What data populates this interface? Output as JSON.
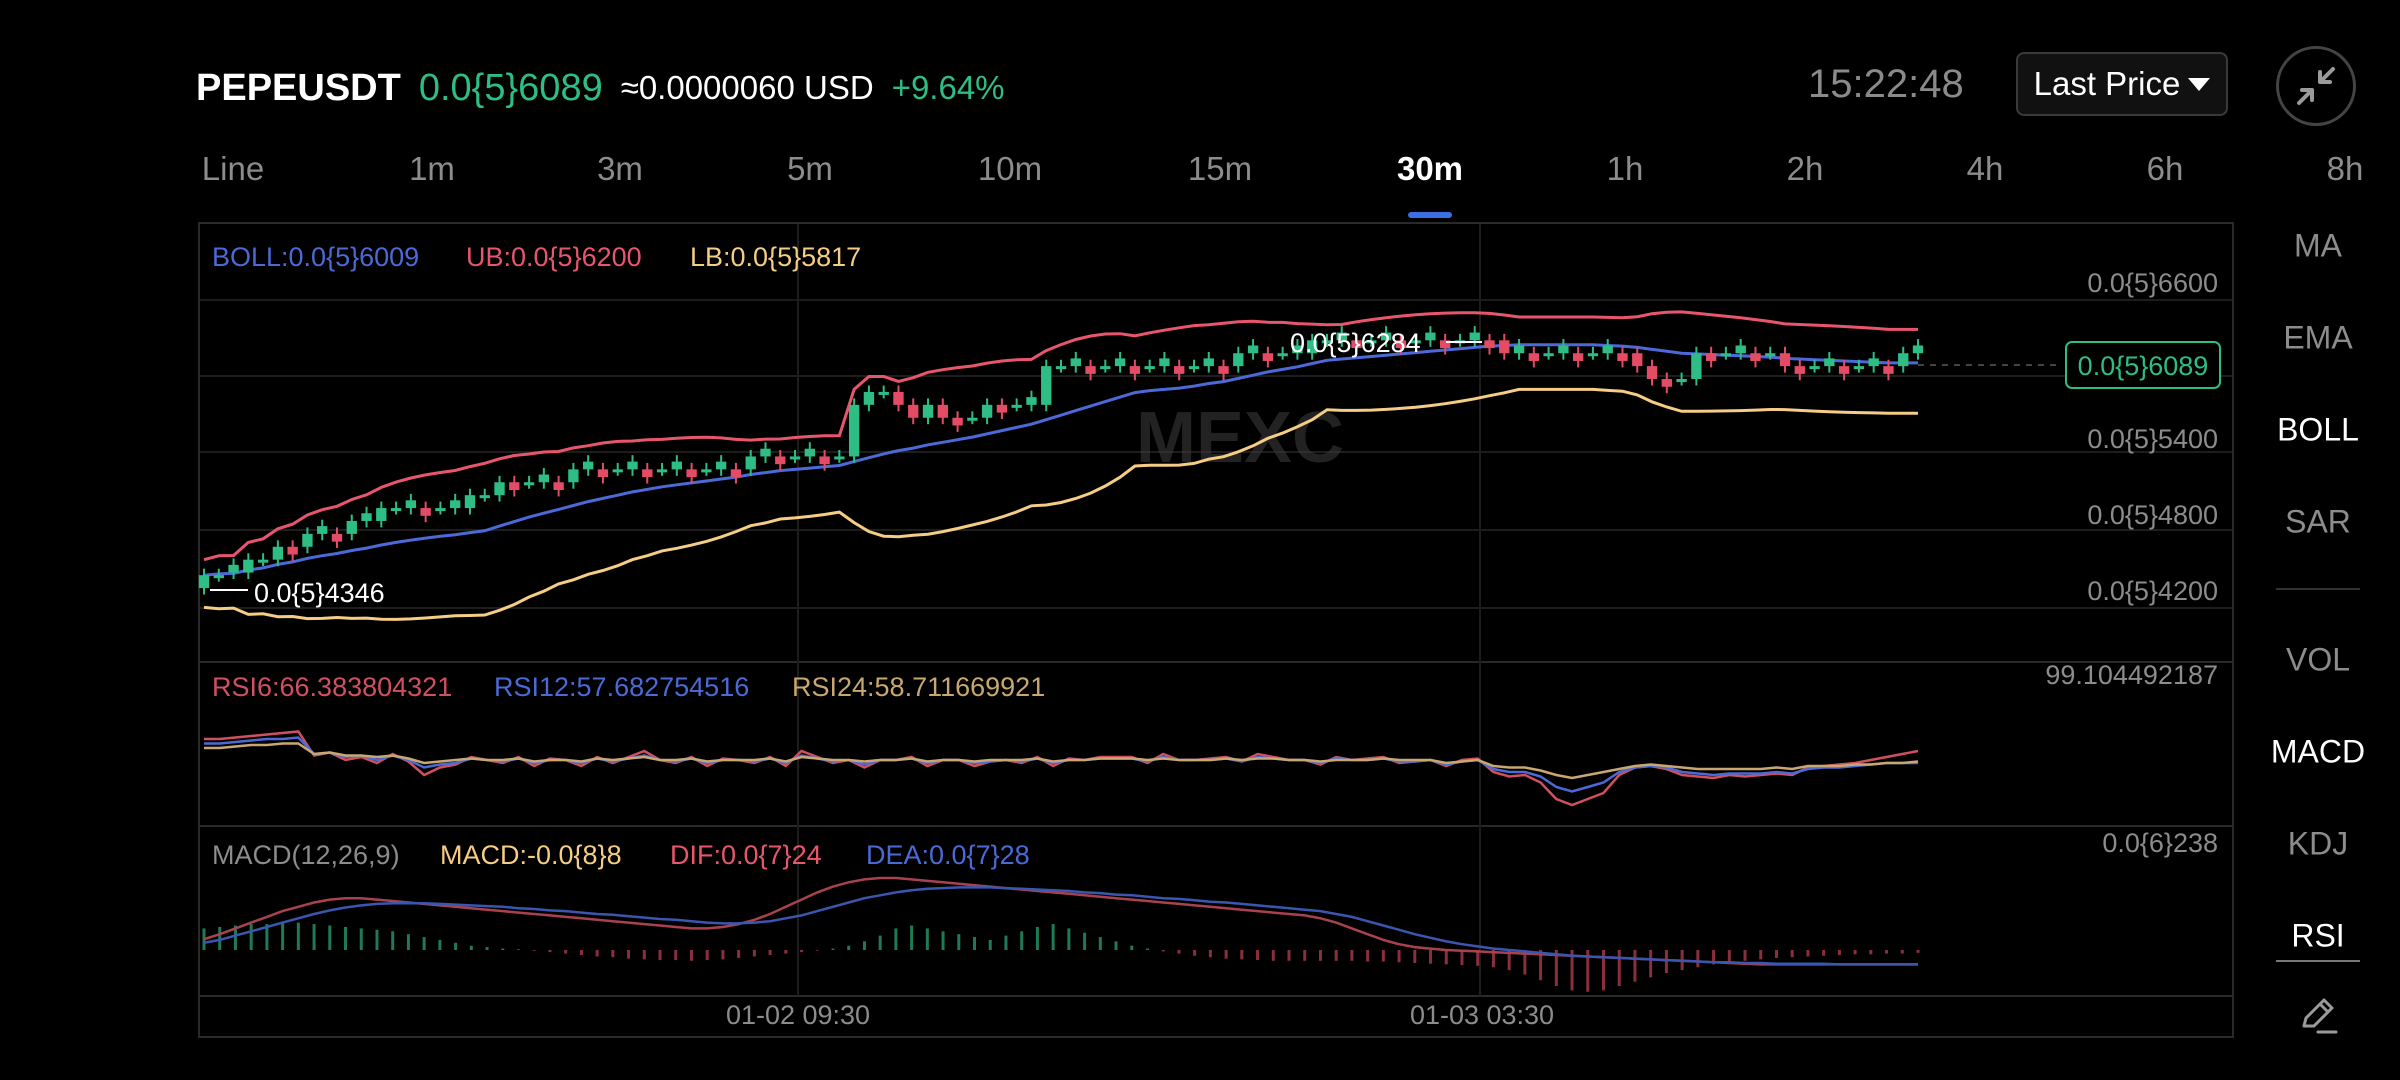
{
  "header": {
    "symbol": "PEPEUSDT",
    "price": "0.0{5}6089",
    "usd_value": "≈0.0000060 USD",
    "change": "+9.64%",
    "time": "15:22:48",
    "price_type": "Last Price"
  },
  "tabs": [
    {
      "label": "Line",
      "active": false
    },
    {
      "label": "1m",
      "active": false
    },
    {
      "label": "3m",
      "active": false
    },
    {
      "label": "5m",
      "active": false
    },
    {
      "label": "10m",
      "active": false
    },
    {
      "label": "15m",
      "active": false
    },
    {
      "label": "30m",
      "active": true
    },
    {
      "label": "1h",
      "active": false
    },
    {
      "label": "2h",
      "active": false
    },
    {
      "label": "4h",
      "active": false
    },
    {
      "label": "6h",
      "active": false
    },
    {
      "label": "8h",
      "active": false
    }
  ],
  "indicators": {
    "main": [
      {
        "label": "MA",
        "active": false
      },
      {
        "label": "EMA",
        "active": false
      },
      {
        "label": "BOLL",
        "active": true
      },
      {
        "label": "SAR",
        "active": false
      }
    ],
    "sub": [
      {
        "label": "VOL",
        "active": false
      },
      {
        "label": "MACD",
        "active": true
      },
      {
        "label": "KDJ",
        "active": false
      },
      {
        "label": "RSI",
        "active": true
      }
    ]
  },
  "colors": {
    "up": "#2ebd85",
    "down": "#e44c66",
    "boll": "#4b6ad8",
    "ub": "#e8566d",
    "lb": "#f5cd85",
    "rsi6": "#d05060",
    "rsi12": "#4b6ad8",
    "rsi24": "#c8a870"
  },
  "chart_data": [
    {
      "type": "candlestick",
      "title": "",
      "legend": [
        {
          "label": "BOLL:0.0{5}6009",
          "color": "#4b6ad8"
        },
        {
          "label": "UB:0.0{5}6200",
          "color": "#e8566d"
        },
        {
          "label": "LB:0.0{5}5817",
          "color": "#f5cd85"
        }
      ],
      "y_ticks": [
        "0.0{5}6600",
        "0.0{5}5400",
        "0.0{5}4800",
        "0.0{5}4200"
      ],
      "x_ticks": [
        "01-02 09:30",
        "01-03 03:30"
      ],
      "current_price_label": "0.0{5}6089",
      "annotations": [
        {
          "label": "0.0{5}6284",
          "kind": "high"
        },
        {
          "label": "0.0{5}4346",
          "kind": "low"
        }
      ],
      "watermark": "MEXC",
      "ylim": [
        3.8e-06,
        6.9e-06
      ],
      "close": [
        4.38e-06,
        4.4e-06,
        4.4e-06,
        4.5e-06,
        4.5e-06,
        4.6e-06,
        4.6e-06,
        4.7e-06,
        4.7e-06,
        4.7e-06,
        4.8e-06,
        4.8e-06,
        4.9e-06,
        4.9e-06,
        4.9e-06,
        4.9e-06,
        4.9e-06,
        4.9e-06,
        5e-06,
        5e-06,
        5.1e-06,
        5.1e-06,
        5.1e-06,
        5.1e-06,
        5.1e-06,
        5.2e-06,
        5.2e-06,
        5.2e-06,
        5.2e-06,
        5.2e-06,
        5.2e-06,
        5.2e-06,
        5.2e-06,
        5.2e-06,
        5.2e-06,
        5.2e-06,
        5.2e-06,
        5.3e-06,
        5.3e-06,
        5.3e-06,
        5.3e-06,
        5.3e-06,
        5.3e-06,
        5.3e-06,
        5.7e-06,
        5.8e-06,
        5.8e-06,
        5.7e-06,
        5.6e-06,
        5.7e-06,
        5.6e-06,
        5.6e-06,
        5.6e-06,
        5.7e-06,
        5.7e-06,
        5.7e-06,
        5.7e-06,
        6e-06,
        6e-06,
        6e-06,
        6e-06,
        6e-06,
        6e-06,
        6e-06,
        6e-06,
        6e-06,
        6e-06,
        6e-06,
        6e-06,
        6e-06,
        6.1e-06,
        6.1e-06,
        6.1e-06,
        6.1e-06,
        6.1e-06,
        6.2e-06,
        6.2e-06,
        6.2e-06,
        6.2e-06,
        6.2e-06,
        6.2e-06,
        6.2e-06,
        6.2e-06,
        6.2e-06,
        6.2e-06,
        6.2e-06,
        6.2e-06,
        6.2e-06,
        6.1e-06,
        6.1e-06,
        6.1e-06,
        6.1e-06,
        6.1e-06,
        6.1e-06,
        6.1e-06,
        6.1e-06,
        6.1e-06,
        6e-06,
        5.9e-06,
        5.9e-06,
        5.9e-06,
        6.1e-06,
        6.1e-06,
        6.1e-06,
        6.1e-06,
        6.1e-06,
        6.1e-06,
        6e-06,
        6e-06,
        6e-06,
        6e-06,
        6e-06,
        6e-06,
        6e-06,
        6e-06,
        6.1e-06,
        6.1e-06
      ]
    },
    {
      "type": "line",
      "title": "",
      "legend": [
        {
          "label": "RSI6:66.383804321",
          "color": "#d05060"
        },
        {
          "label": "RSI12:57.682754516",
          "color": "#4b6ad8"
        },
        {
          "label": "RSI24:58.711669921",
          "color": "#c8a870"
        }
      ],
      "y_ticks": [
        "99.104492187"
      ],
      "ylim": [
        20,
        100
      ],
      "series": [
        {
          "name": "RSI6",
          "values": [
            74,
            74,
            75,
            76,
            77,
            78,
            79,
            63,
            65,
            60,
            62,
            58,
            64,
            59,
            50,
            55,
            57,
            62,
            60,
            58,
            62,
            56,
            61,
            60,
            56,
            62,
            58,
            62,
            66,
            60,
            58,
            62,
            56,
            61,
            60,
            58,
            62,
            56,
            66,
            62,
            58,
            60,
            55,
            60,
            60,
            62,
            56,
            60,
            60,
            56,
            59,
            60,
            58,
            62,
            56,
            61,
            60,
            62,
            62,
            62,
            58,
            64,
            60,
            60,
            61,
            62,
            59,
            64,
            62,
            60,
            60,
            57,
            62,
            60,
            61,
            62,
            58,
            59,
            60,
            56,
            60,
            61,
            52,
            49,
            50,
            45,
            34,
            30,
            34,
            38,
            50,
            55,
            56,
            54,
            50,
            49,
            48,
            50,
            49,
            50,
            51,
            50,
            55,
            56,
            57,
            58,
            60,
            62,
            64,
            66
          ]
        },
        {
          "name": "RSI12",
          "values": [
            71,
            71,
            72,
            73,
            74,
            74,
            75,
            64,
            65,
            62,
            63,
            60,
            63,
            60,
            55,
            57,
            58,
            61,
            60,
            59,
            61,
            58,
            60,
            60,
            58,
            61,
            59,
            61,
            63,
            60,
            59,
            61,
            58,
            60,
            60,
            59,
            61,
            58,
            63,
            61,
            59,
            60,
            57,
            60,
            60,
            61,
            58,
            60,
            60,
            58,
            59,
            60,
            59,
            61,
            58,
            60,
            60,
            61,
            61,
            61,
            59,
            62,
            60,
            60,
            60,
            61,
            59,
            62,
            61,
            60,
            60,
            58,
            61,
            60,
            60,
            61,
            59,
            59,
            60,
            57,
            59,
            60,
            54,
            52,
            52,
            49,
            42,
            39,
            42,
            45,
            52,
            55,
            56,
            55,
            52,
            51,
            50,
            51,
            51,
            51,
            52,
            51,
            54,
            55,
            55,
            56,
            57,
            58,
            58,
            58
          ]
        },
        {
          "name": "RSI24",
          "values": [
            68,
            68,
            69,
            70,
            70,
            71,
            71,
            64,
            65,
            63,
            63,
            62,
            63,
            61,
            58,
            59,
            60,
            61,
            60,
            60,
            61,
            59,
            60,
            60,
            59,
            61,
            60,
            61,
            62,
            60,
            60,
            61,
            59,
            60,
            60,
            60,
            61,
            59,
            62,
            61,
            60,
            60,
            59,
            60,
            60,
            61,
            59,
            60,
            60,
            59,
            60,
            60,
            60,
            61,
            59,
            60,
            60,
            61,
            61,
            61,
            60,
            61,
            60,
            60,
            60,
            61,
            60,
            61,
            61,
            60,
            60,
            59,
            60,
            60,
            60,
            61,
            60,
            60,
            60,
            58,
            59,
            60,
            56,
            55,
            55,
            53,
            50,
            48,
            50,
            52,
            54,
            56,
            57,
            56,
            55,
            54,
            54,
            54,
            54,
            54,
            55,
            54,
            56,
            56,
            56,
            57,
            57,
            58,
            58,
            59
          ]
        }
      ]
    },
    {
      "type": "bar+line",
      "title": "",
      "legend": [
        {
          "label": "MACD(12,26,9)",
          "color": "#8c8c8c"
        },
        {
          "label": "MACD:-0.0{8}8",
          "color": "#f5cd85"
        },
        {
          "label": "DIF:0.0{7}24",
          "color": "#e8566d"
        },
        {
          "label": "DEA:0.0{7}28",
          "color": "#4b6ad8"
        }
      ],
      "y_ticks": [
        "0.0{6}238"
      ],
      "ylim": [
        -1,
        1
      ],
      "macd_hist": [
        0.3,
        0.32,
        0.34,
        0.36,
        0.36,
        0.38,
        0.38,
        0.36,
        0.34,
        0.32,
        0.3,
        0.28,
        0.26,
        0.22,
        0.18,
        0.14,
        0.1,
        0.06,
        0.04,
        0.02,
        0.01,
        -0.01,
        -0.03,
        -0.05,
        -0.07,
        -0.09,
        -0.1,
        -0.12,
        -0.13,
        -0.14,
        -0.14,
        -0.15,
        -0.14,
        -0.13,
        -0.11,
        -0.09,
        -0.07,
        -0.05,
        -0.03,
        -0.01,
        0.02,
        0.06,
        0.12,
        0.2,
        0.3,
        0.34,
        0.3,
        0.26,
        0.22,
        0.18,
        0.14,
        0.2,
        0.26,
        0.32,
        0.36,
        0.3,
        0.24,
        0.18,
        0.12,
        0.06,
        0.02,
        -0.02,
        -0.05,
        -0.08,
        -0.1,
        -0.12,
        -0.13,
        -0.14,
        -0.15,
        -0.15,
        -0.15,
        -0.15,
        -0.15,
        -0.15,
        -0.16,
        -0.16,
        -0.17,
        -0.18,
        -0.19,
        -0.2,
        -0.21,
        -0.22,
        -0.24,
        -0.28,
        -0.34,
        -0.42,
        -0.5,
        -0.56,
        -0.58,
        -0.56,
        -0.5,
        -0.44,
        -0.38,
        -0.32,
        -0.28,
        -0.24,
        -0.2,
        -0.17,
        -0.15,
        -0.13,
        -0.11,
        -0.1,
        -0.09,
        -0.08,
        -0.07,
        -0.06,
        -0.06,
        -0.05,
        -0.05,
        -0.04
      ],
      "series": [
        {
          "name": "DIF",
          "values": [
            0.15,
            0.22,
            0.3,
            0.38,
            0.46,
            0.54,
            0.6,
            0.66,
            0.7,
            0.72,
            0.72,
            0.7,
            0.68,
            0.66,
            0.64,
            0.62,
            0.6,
            0.58,
            0.56,
            0.54,
            0.52,
            0.5,
            0.48,
            0.46,
            0.44,
            0.42,
            0.4,
            0.38,
            0.36,
            0.34,
            0.32,
            0.3,
            0.3,
            0.32,
            0.36,
            0.42,
            0.5,
            0.6,
            0.7,
            0.8,
            0.88,
            0.94,
            0.98,
            1.0,
            1.0,
            0.98,
            0.96,
            0.94,
            0.92,
            0.9,
            0.88,
            0.86,
            0.84,
            0.82,
            0.8,
            0.78,
            0.76,
            0.74,
            0.72,
            0.7,
            0.68,
            0.66,
            0.64,
            0.62,
            0.6,
            0.58,
            0.56,
            0.54,
            0.52,
            0.5,
            0.48,
            0.44,
            0.38,
            0.3,
            0.22,
            0.14,
            0.08,
            0.04,
            0.02,
            0.0,
            -0.01,
            -0.02,
            -0.03,
            -0.04,
            -0.05,
            -0.06,
            -0.07,
            -0.08,
            -0.09,
            -0.1,
            -0.11,
            -0.12,
            -0.13,
            -0.14,
            -0.15,
            -0.16,
            -0.17,
            -0.18,
            -0.19,
            -0.2,
            -0.2,
            -0.2,
            -0.2,
            -0.2,
            -0.2,
            -0.2,
            -0.2,
            -0.2,
            -0.2,
            -0.2
          ]
        },
        {
          "name": "DEA",
          "values": [
            0.1,
            0.14,
            0.2,
            0.26,
            0.32,
            0.38,
            0.44,
            0.5,
            0.55,
            0.59,
            0.62,
            0.64,
            0.65,
            0.65,
            0.65,
            0.64,
            0.63,
            0.62,
            0.61,
            0.6,
            0.58,
            0.57,
            0.55,
            0.54,
            0.52,
            0.5,
            0.49,
            0.47,
            0.45,
            0.43,
            0.42,
            0.4,
            0.38,
            0.37,
            0.37,
            0.38,
            0.4,
            0.44,
            0.48,
            0.54,
            0.6,
            0.66,
            0.72,
            0.76,
            0.8,
            0.83,
            0.85,
            0.86,
            0.87,
            0.87,
            0.87,
            0.86,
            0.85,
            0.84,
            0.83,
            0.82,
            0.8,
            0.79,
            0.77,
            0.76,
            0.74,
            0.72,
            0.71,
            0.69,
            0.67,
            0.66,
            0.64,
            0.62,
            0.6,
            0.58,
            0.56,
            0.54,
            0.5,
            0.46,
            0.4,
            0.34,
            0.28,
            0.22,
            0.17,
            0.12,
            0.08,
            0.05,
            0.02,
            0.0,
            -0.02,
            -0.04,
            -0.06,
            -0.08,
            -0.09,
            -0.1,
            -0.11,
            -0.12,
            -0.13,
            -0.14,
            -0.15,
            -0.16,
            -0.17,
            -0.17,
            -0.18,
            -0.18,
            -0.19,
            -0.19,
            -0.19,
            -0.19,
            -0.2,
            -0.2,
            -0.2,
            -0.2,
            -0.2,
            -0.2
          ]
        }
      ]
    }
  ]
}
